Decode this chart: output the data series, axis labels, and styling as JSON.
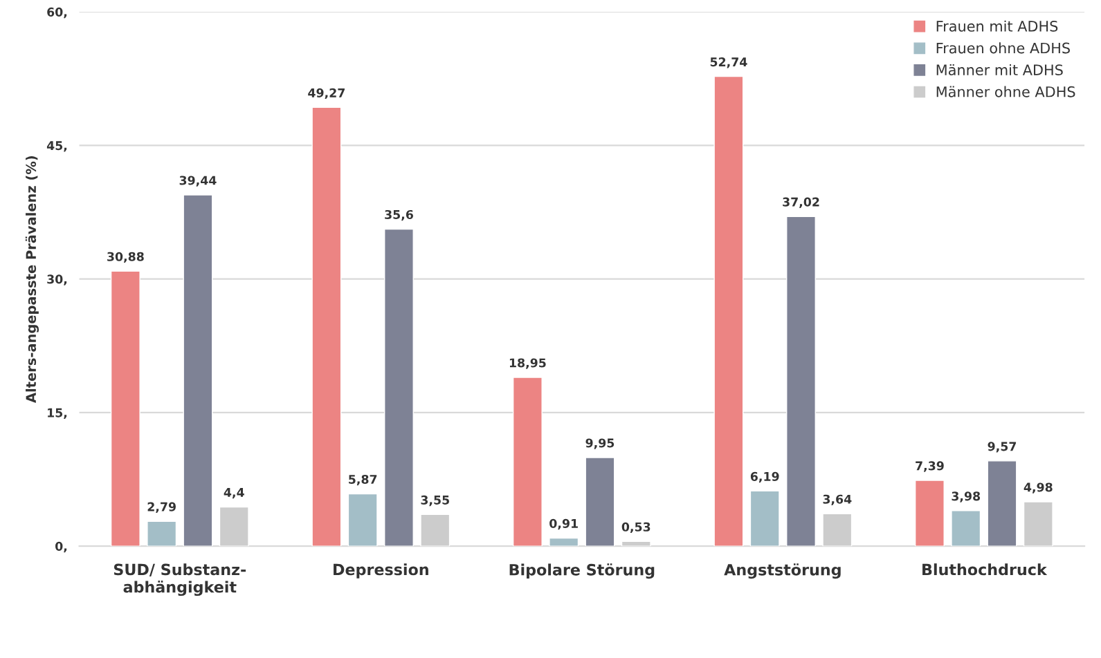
{
  "chart_data": {
    "type": "bar",
    "ylabel": "Alters-angepasste Prävalenz (%)",
    "categories": [
      "SUD/ Substanz-\nabhängigkeit",
      "Depression",
      "Bipolare Störung",
      "Angststörung",
      "Bluthochdruck"
    ],
    "series": [
      {
        "name": "Frauen mit ADHS",
        "color": "#ec8483",
        "values": [
          30.88,
          49.27,
          18.95,
          52.74,
          7.39
        ],
        "value_labels": [
          "30,88",
          "49,27",
          "18,95",
          "52,74",
          "7,39"
        ]
      },
      {
        "name": "Frauen ohne ADHS",
        "color": "#a3bec7",
        "values": [
          2.79,
          5.87,
          0.91,
          6.19,
          3.98
        ],
        "value_labels": [
          "2,79",
          "5,87",
          "0,91",
          "6,19",
          "3,98"
        ]
      },
      {
        "name": "Männer mit ADHS",
        "color": "#7e8295",
        "values": [
          39.44,
          35.6,
          9.95,
          37.02,
          9.57
        ],
        "value_labels": [
          "39,44",
          "35,6",
          "9,95",
          "37,02",
          "9,57"
        ]
      },
      {
        "name": "Männer ohne ADHS",
        "color": "#cccccc",
        "values": [
          4.4,
          3.55,
          0.53,
          3.64,
          4.98
        ],
        "value_labels": [
          "4,4",
          "3,55",
          "0,53",
          "3,64",
          "4,98"
        ]
      }
    ],
    "ylim": [
      0,
      60
    ],
    "yticks": [
      {
        "value": 0,
        "label": "0,"
      },
      {
        "value": 15,
        "label": "15,"
      },
      {
        "value": 30,
        "label": "30,"
      },
      {
        "value": 45,
        "label": "45,"
      },
      {
        "value": 60,
        "label": "60,"
      }
    ],
    "grid": "y",
    "legend": "top right"
  }
}
